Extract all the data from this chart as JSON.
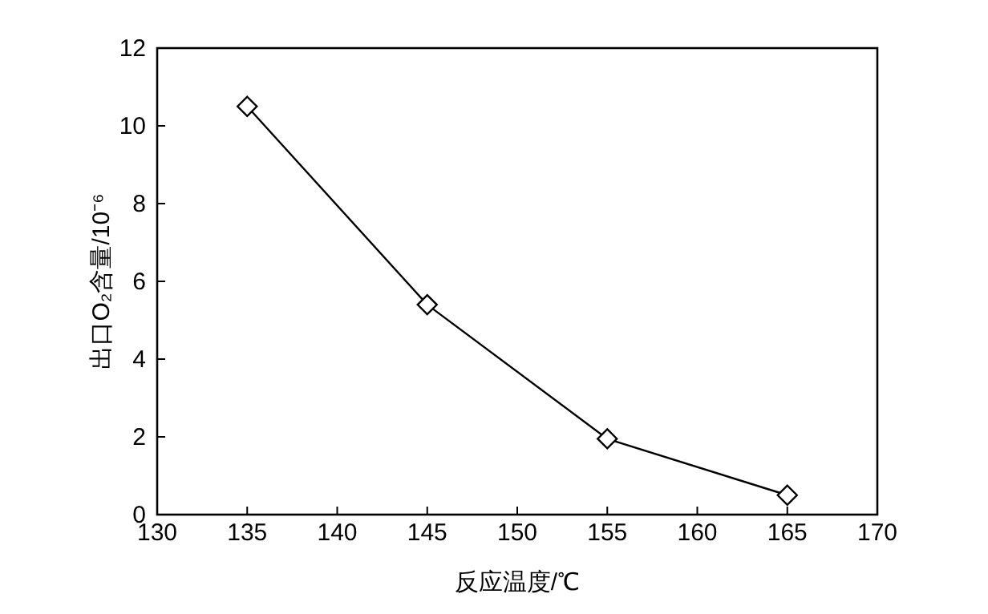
{
  "chart_data": {
    "type": "line",
    "xlabel": "反应温度/℃",
    "ylabel": "出口O₂含量/10⁻⁶",
    "x": [
      135,
      145,
      155,
      165
    ],
    "series": [
      {
        "color": "#000000",
        "values": [
          10.5,
          5.4,
          1.95,
          0.5
        ]
      }
    ],
    "xlim": [
      130,
      170
    ],
    "xticks": [
      130,
      135,
      140,
      145,
      150,
      155,
      160,
      165,
      170
    ],
    "ylim": [
      0,
      12
    ],
    "yticks": [
      0,
      2,
      4,
      6,
      8,
      10,
      12
    ],
    "marker": "diamond",
    "line_style": "solid",
    "grid": false
  }
}
